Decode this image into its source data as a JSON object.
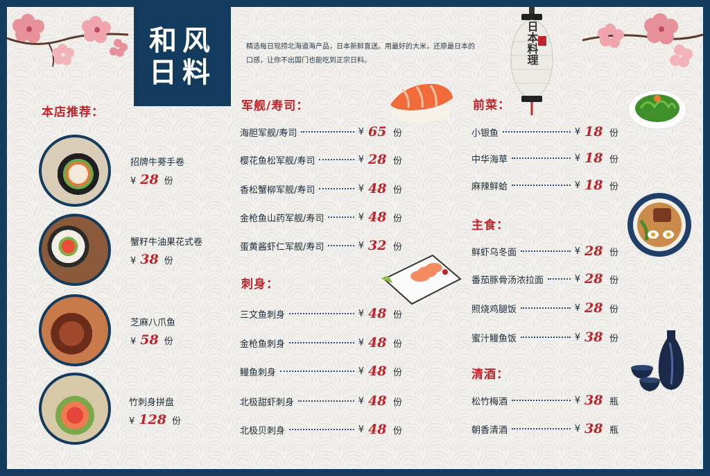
{
  "title": {
    "line1": "和风",
    "line2": "日料"
  },
  "intro": "精选每日现捞北海道海产品，日本新鲜直送。用最好的大米，还原最日本的口感，让你不出国门也能吃到正宗日料。",
  "lantern_text": "日本料理",
  "recommend": {
    "heading": "本店推荐：",
    "items": [
      {
        "name": "招牌牛蒡手卷",
        "yen": "¥",
        "price": "28",
        "unit": "份"
      },
      {
        "name": "蟹籽牛油果花式卷",
        "yen": "¥",
        "price": "38",
        "unit": "份"
      },
      {
        "name": "芝麻八爪鱼",
        "yen": "¥",
        "price": "58",
        "unit": "份"
      },
      {
        "name": "竹刺身拼盘",
        "yen": "¥",
        "price": "128",
        "unit": "份"
      }
    ]
  },
  "gunkan": {
    "heading": "军舰/寿司：",
    "items": [
      {
        "name": "海胆军舰/寿司",
        "yen": "¥",
        "price": "65",
        "unit": "份"
      },
      {
        "name": "樱花鱼松军舰/寿司",
        "yen": "¥",
        "price": "28",
        "unit": "份"
      },
      {
        "name": "香松蟹柳军舰/寿司",
        "yen": "¥",
        "price": "48",
        "unit": "份"
      },
      {
        "name": "金枪鱼山药军舰/寿司",
        "yen": "¥",
        "price": "48",
        "unit": "份"
      },
      {
        "name": "蛋黄酱虾仁军舰/寿司",
        "yen": "¥",
        "price": "32",
        "unit": "份"
      }
    ]
  },
  "sashimi": {
    "heading": "刺身：",
    "items": [
      {
        "name": "三文鱼刺身",
        "yen": "¥",
        "price": "48",
        "unit": "份"
      },
      {
        "name": "金枪鱼刺身",
        "yen": "¥",
        "price": "48",
        "unit": "份"
      },
      {
        "name": "鳗鱼刺身",
        "yen": "¥",
        "price": "48",
        "unit": "份"
      },
      {
        "name": "北极甜虾刺身",
        "yen": "¥",
        "price": "48",
        "unit": "份"
      },
      {
        "name": "北极贝刺身",
        "yen": "¥",
        "price": "48",
        "unit": "份"
      }
    ]
  },
  "appetizer": {
    "heading": "前菜：",
    "items": [
      {
        "name": "小银鱼",
        "yen": "¥",
        "price": "18",
        "unit": "份"
      },
      {
        "name": "中华海草",
        "yen": "¥",
        "price": "18",
        "unit": "份"
      },
      {
        "name": "麻辣鲜蛤",
        "yen": "¥",
        "price": "18",
        "unit": "份"
      }
    ]
  },
  "staple": {
    "heading": "主食：",
    "items": [
      {
        "name": "鲜虾乌冬面",
        "yen": "¥",
        "price": "28",
        "unit": "份"
      },
      {
        "name": "番茄豚骨汤浓拉面",
        "yen": "¥",
        "price": "28",
        "unit": "份"
      },
      {
        "name": "照烧鸡腿饭",
        "yen": "¥",
        "price": "28",
        "unit": "份"
      },
      {
        "name": "蜜汁鳗鱼饭",
        "yen": "¥",
        "price": "38",
        "unit": "份"
      }
    ]
  },
  "sake": {
    "heading": "清酒：",
    "items": [
      {
        "name": "松竹梅酒",
        "yen": "¥",
        "price": "38",
        "unit": "瓶"
      },
      {
        "name": "朝香清酒",
        "yen": "¥",
        "price": "38",
        "unit": "瓶"
      }
    ]
  },
  "colors": {
    "navy": "#123b5e",
    "accent_red": "#c0242b",
    "paper": "#f1f0ec"
  }
}
